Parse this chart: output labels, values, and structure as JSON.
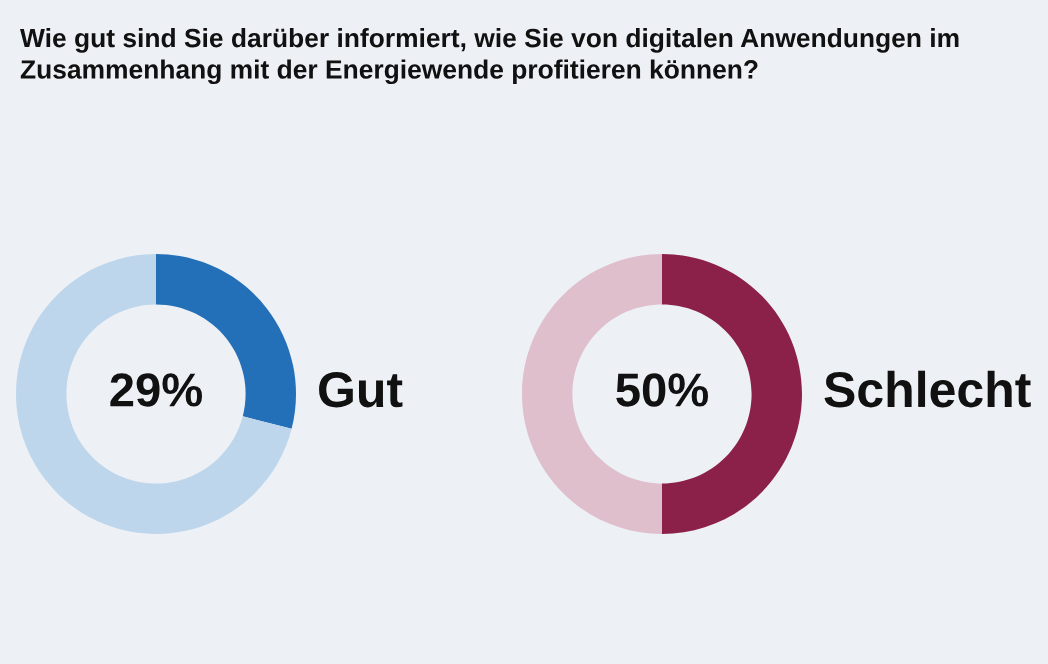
{
  "chart_data": [
    {
      "type": "donut",
      "title": "Wie gut sind Sie darüber informiert, wie Sie von digitalen Anwendungen im Zusammenhang mit der Energiewende profitieren können?",
      "categories": [
        "Gut",
        null
      ],
      "values": [
        29,
        71
      ],
      "colors": [
        "#2370b8",
        "#bdd6ec"
      ],
      "value_labels": [
        "29%",
        null
      ]
    },
    {
      "type": "donut",
      "categories": [
        "Schlecht",
        null
      ],
      "values": [
        50,
        50
      ],
      "colors": [
        "#8b2149",
        "#dfbfcc"
      ],
      "value_labels": [
        "50%",
        null
      ]
    }
  ]
}
